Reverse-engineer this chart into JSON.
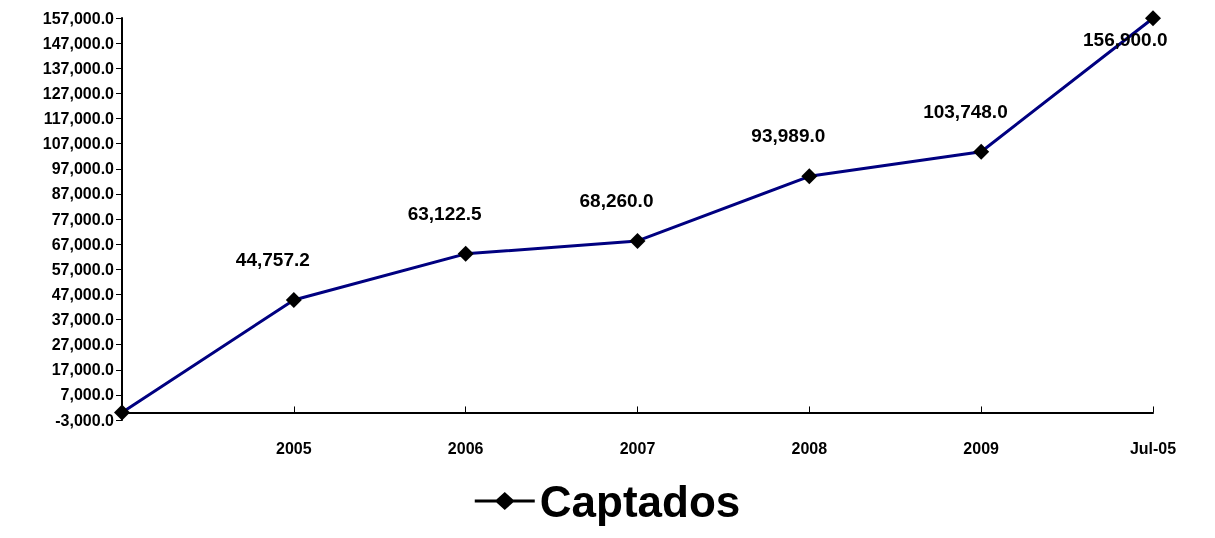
{
  "chart_data": {
    "type": "line",
    "categories": [
      null,
      "2005",
      "2006",
      "2007",
      "2008",
      "2009",
      "Jul-05"
    ],
    "series": [
      {
        "name": "Captados",
        "color": "#000080",
        "values": [
          0,
          44757.2,
          63122.5,
          68260.0,
          93989.0,
          103748.0,
          156900.0
        ],
        "value_labels": [
          null,
          "44,757.2",
          "63,122.5",
          "68,260.0",
          "93,989.0",
          "103,748.0",
          "156,900.0"
        ]
      }
    ],
    "ylim": [
      -3000,
      157000
    ],
    "yticks": [
      {
        "value": -3000,
        "label": "-3,000.0"
      },
      {
        "value": 7000,
        "label": "7,000.0"
      },
      {
        "value": 17000,
        "label": "17,000.0"
      },
      {
        "value": 27000,
        "label": "27,000.0"
      },
      {
        "value": 37000,
        "label": "37,000.0"
      },
      {
        "value": 47000,
        "label": "47,000.0"
      },
      {
        "value": 57000,
        "label": "57,000.0"
      },
      {
        "value": 67000,
        "label": "67,000.0"
      },
      {
        "value": 77000,
        "label": "77,000.0"
      },
      {
        "value": 87000,
        "label": "87,000.0"
      },
      {
        "value": 97000,
        "label": "97,000.0"
      },
      {
        "value": 107000,
        "label": "107,000.0"
      },
      {
        "value": 117000,
        "label": "117,000.0"
      },
      {
        "value": 127000,
        "label": "127,000.0"
      },
      {
        "value": 137000,
        "label": "137,000.0"
      },
      {
        "value": 147000,
        "label": "147,000.0"
      },
      {
        "value": 157000,
        "label": "157,000.0"
      }
    ],
    "grid": false,
    "legend": "bottom",
    "marker": "diamond",
    "line_style": "solid"
  }
}
